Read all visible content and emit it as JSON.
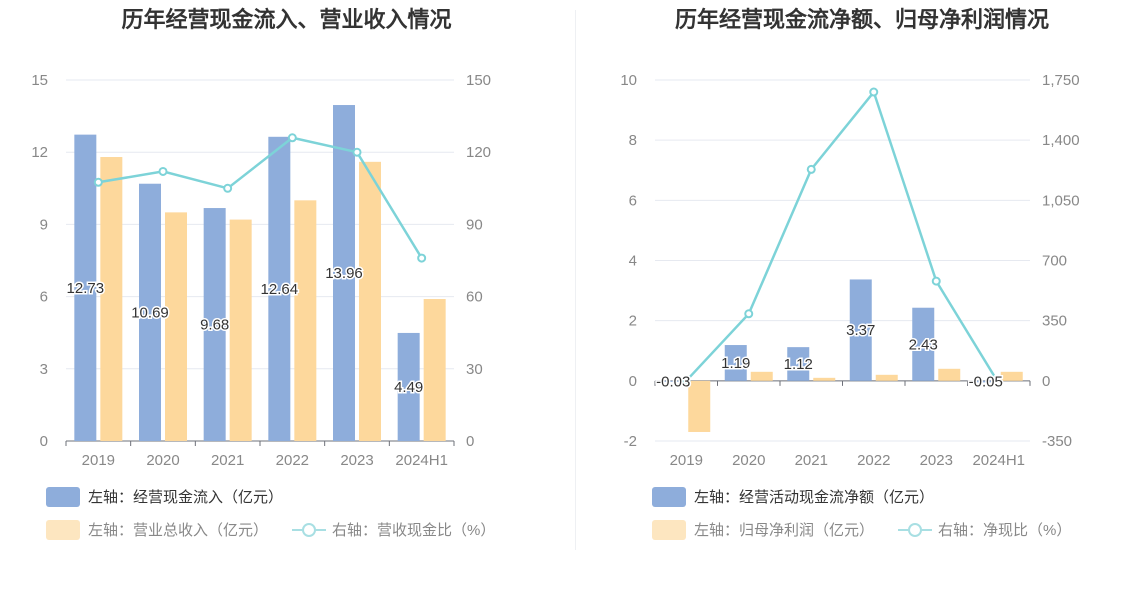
{
  "colors": {
    "bar_primary": "#8eaddb",
    "bar_secondary": "#fdd89c",
    "line": "#7dd3d8",
    "grid": "#e6e9f0",
    "axis_text": "#888888"
  },
  "chart_data": [
    {
      "type": "bar",
      "title": "历年经营现金流入、营业收入情况",
      "categories": [
        "2019",
        "2020",
        "2021",
        "2022",
        "2023",
        "2024H1"
      ],
      "left_axis": {
        "ylim": [
          0,
          15
        ],
        "ticks": [
          "0",
          "3",
          "6",
          "9",
          "12",
          "15"
        ]
      },
      "right_axis": {
        "ylim": [
          0,
          150
        ],
        "ticks": [
          "0",
          "30",
          "60",
          "90",
          "120",
          "150"
        ]
      },
      "series": [
        {
          "name": "左轴：经营现金流入（亿元）",
          "kind": "bar",
          "axis": "left",
          "values": [
            12.73,
            10.69,
            9.68,
            12.64,
            13.96,
            4.49
          ],
          "labels": [
            "12.73",
            "10.69",
            "9.68",
            "12.64",
            "13.96",
            "4.49"
          ]
        },
        {
          "name": "左轴：营业总收入（亿元）",
          "kind": "bar",
          "axis": "left",
          "values": [
            11.8,
            9.5,
            9.2,
            10.0,
            11.6,
            5.9
          ]
        },
        {
          "name": "右轴：营收现金比（%）",
          "kind": "line",
          "axis": "right",
          "values": [
            107.5,
            112,
            105,
            126,
            120,
            76
          ]
        }
      ],
      "grid": true,
      "legend_position": "bottom-left"
    },
    {
      "type": "bar",
      "title": "历年经营现金流净额、归母净利润情况",
      "categories": [
        "2019",
        "2020",
        "2021",
        "2022",
        "2023",
        "2024H1"
      ],
      "left_axis": {
        "ylim": [
          -2,
          10
        ],
        "ticks": [
          "-2",
          "0",
          "2",
          "4",
          "6",
          "8",
          "10"
        ]
      },
      "right_axis": {
        "ylim": [
          -350,
          1750
        ],
        "ticks": [
          "-350",
          "0",
          "350",
          "700",
          "1,050",
          "1,400",
          "1,750"
        ]
      },
      "series": [
        {
          "name": "左轴：经营活动现金流净额（亿元）",
          "kind": "bar",
          "axis": "left",
          "values": [
            -0.03,
            1.19,
            1.12,
            3.37,
            2.43,
            -0.05
          ],
          "labels": [
            "-0.03",
            "1.19",
            "1.12",
            "3.37",
            "2.43",
            "-0.05"
          ]
        },
        {
          "name": "左轴：归母净利润（亿元）",
          "kind": "bar",
          "axis": "left",
          "values": [
            -1.7,
            0.3,
            0.1,
            0.2,
            0.4,
            0.3
          ]
        },
        {
          "name": "右轴：净现比（%）",
          "kind": "line",
          "axis": "right",
          "values": [
            0,
            390,
            1230,
            1680,
            580,
            -15
          ]
        }
      ],
      "grid": true,
      "legend_position": "bottom-left"
    }
  ]
}
